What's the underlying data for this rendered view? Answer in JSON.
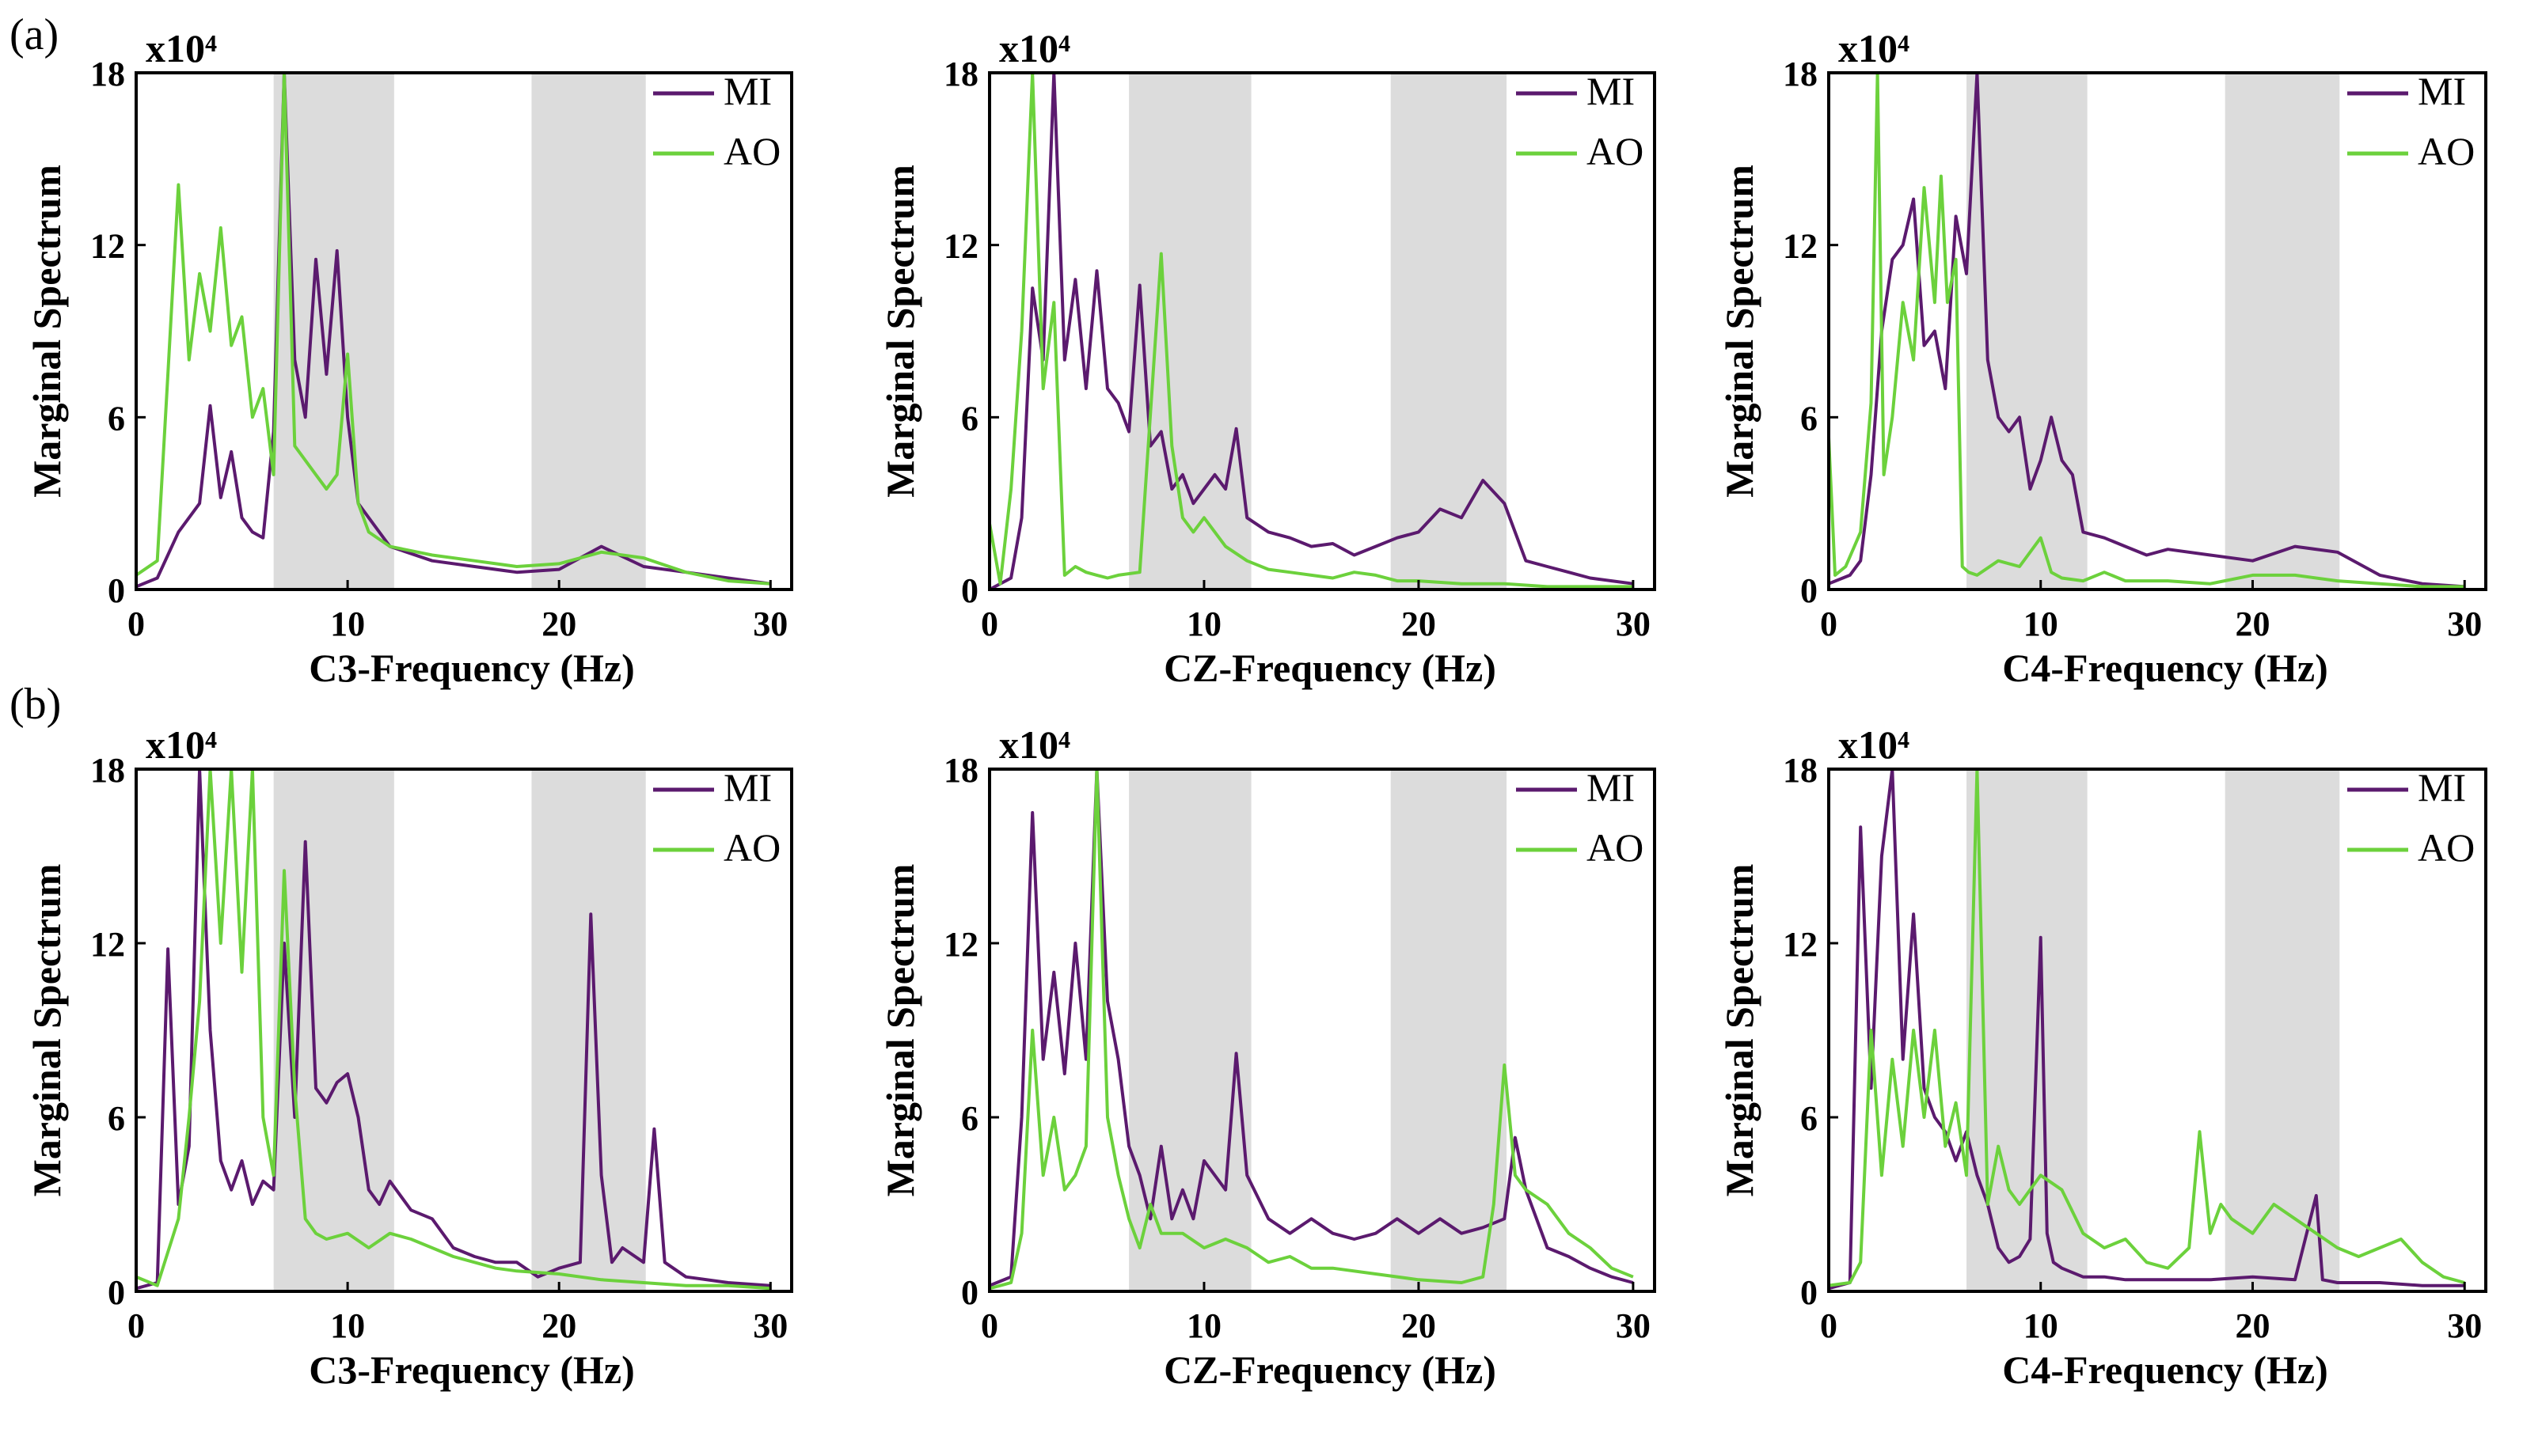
{
  "figure": {
    "panel_labels": [
      "(a)",
      "(b)"
    ],
    "colors": {
      "MI": "#5b1a6e",
      "AO": "#6cd13c",
      "shade": "#dcdcdc",
      "axis": "#000000"
    }
  },
  "chart_data": [
    {
      "type": "line",
      "row": "a",
      "title": "x10⁴",
      "xlabel": "C3-Frequency (Hz)",
      "ylabel": "Marginal Spectrum",
      "xlim": [
        0,
        31
      ],
      "ylim": [
        0,
        18
      ],
      "xticks": [
        0,
        10,
        20,
        30
      ],
      "yticks": [
        0,
        6,
        12,
        18
      ],
      "shaded_bands": [
        [
          6.5,
          12.2
        ],
        [
          18.7,
          24.1
        ]
      ],
      "legend": [
        "MI",
        "AO"
      ],
      "series": [
        {
          "name": "MI",
          "x": [
            0,
            1,
            2,
            3,
            3.5,
            4,
            4.5,
            5,
            5.5,
            6,
            6.5,
            7,
            7.5,
            8,
            8.5,
            9,
            9.5,
            10,
            10.5,
            11,
            12,
            14,
            16,
            18,
            20,
            22,
            24,
            26,
            28,
            30
          ],
          "y": [
            0.1,
            0.4,
            2.0,
            3.0,
            6.4,
            3.2,
            4.8,
            2.5,
            2.0,
            1.8,
            5.5,
            18.0,
            8.0,
            6.0,
            11.5,
            7.5,
            11.8,
            6.0,
            3.0,
            2.5,
            1.5,
            1.0,
            0.8,
            0.6,
            0.7,
            1.5,
            0.8,
            0.6,
            0.4,
            0.2
          ]
        },
        {
          "name": "AO",
          "x": [
            0,
            1,
            1.5,
            2,
            2.5,
            3,
            3.5,
            4,
            4.5,
            5,
            5.5,
            6,
            6.5,
            7,
            7.5,
            8,
            8.5,
            9,
            9.5,
            10,
            10.5,
            11,
            12,
            14,
            16,
            18,
            20,
            22,
            24,
            26,
            28,
            30
          ],
          "y": [
            0.5,
            1.0,
            7.5,
            14.1,
            8.0,
            11.0,
            9.0,
            12.6,
            8.5,
            9.5,
            6.0,
            7.0,
            4.0,
            18.0,
            5.0,
            4.5,
            4.0,
            3.5,
            4.0,
            8.2,
            3.0,
            2.0,
            1.5,
            1.2,
            1.0,
            0.8,
            0.9,
            1.3,
            1.1,
            0.6,
            0.3,
            0.2
          ]
        }
      ]
    },
    {
      "type": "line",
      "row": "a",
      "title": "x10⁴",
      "xlabel": "CZ-Frequency (Hz)",
      "ylabel": "Marginal Spectrum",
      "xlim": [
        0,
        31
      ],
      "ylim": [
        0,
        18
      ],
      "xticks": [
        0,
        10,
        20,
        30
      ],
      "yticks": [
        0,
        6,
        12,
        18
      ],
      "shaded_bands": [
        [
          6.5,
          12.2
        ],
        [
          18.7,
          24.1
        ]
      ],
      "legend": [
        "MI",
        "AO"
      ],
      "series": [
        {
          "name": "MI",
          "x": [
            0,
            1,
            1.5,
            2,
            2.5,
            3,
            3.5,
            4,
            4.5,
            5,
            5.5,
            6,
            6.5,
            7,
            7.5,
            8,
            8.5,
            9,
            9.5,
            10,
            10.5,
            11,
            11.5,
            12,
            13,
            14,
            15,
            16,
            17,
            18,
            19,
            20,
            21,
            22,
            23,
            24,
            25,
            26,
            27,
            28,
            29,
            30
          ],
          "y": [
            0,
            0.4,
            2.5,
            10.5,
            8.0,
            18.0,
            8.0,
            10.8,
            7.0,
            11.1,
            7.0,
            6.5,
            5.5,
            10.6,
            5.0,
            5.5,
            3.5,
            4.0,
            3.0,
            3.5,
            4.0,
            3.5,
            5.6,
            2.5,
            2.0,
            1.8,
            1.5,
            1.6,
            1.2,
            1.5,
            1.8,
            2.0,
            2.8,
            2.5,
            3.8,
            3.0,
            1.0,
            0.8,
            0.6,
            0.4,
            0.3,
            0.2
          ]
        },
        {
          "name": "AO",
          "x": [
            0,
            0.5,
            1,
            1.5,
            2,
            2.5,
            3,
            3.5,
            4,
            4.5,
            5,
            5.5,
            6,
            7,
            8,
            8.5,
            9,
            9.5,
            10,
            11,
            12,
            13,
            14,
            15,
            16,
            17,
            18,
            19,
            20,
            22,
            24,
            26,
            28,
            30
          ],
          "y": [
            2.3,
            0.2,
            3.5,
            9.0,
            18.0,
            7.0,
            10.0,
            0.5,
            0.8,
            0.6,
            0.5,
            0.4,
            0.5,
            0.6,
            11.7,
            5.0,
            2.5,
            2.0,
            2.5,
            1.5,
            1.0,
            0.7,
            0.6,
            0.5,
            0.4,
            0.6,
            0.5,
            0.3,
            0.3,
            0.2,
            0.2,
            0.1,
            0.1,
            0.1
          ]
        }
      ]
    },
    {
      "type": "line",
      "row": "a",
      "title": "x10⁴",
      "xlabel": "C4-Frequency (Hz)",
      "ylabel": "Marginal Spectrum",
      "xlim": [
        0,
        31
      ],
      "ylim": [
        0,
        18
      ],
      "xticks": [
        0,
        10,
        20,
        30
      ],
      "yticks": [
        0,
        6,
        12,
        18
      ],
      "shaded_bands": [
        [
          6.5,
          12.2
        ],
        [
          18.7,
          24.1
        ]
      ],
      "legend": [
        "MI",
        "AO"
      ],
      "series": [
        {
          "name": "MI",
          "x": [
            0,
            1,
            1.5,
            2,
            2.5,
            3,
            3.5,
            4,
            4.5,
            5,
            5.5,
            6,
            6.5,
            7,
            7.5,
            8,
            8.5,
            9,
            9.5,
            10,
            10.5,
            11,
            11.5,
            12,
            13,
            14,
            15,
            16,
            18,
            20,
            22,
            24,
            26,
            28,
            30
          ],
          "y": [
            0.2,
            0.5,
            1.0,
            4.0,
            9.0,
            11.5,
            12.0,
            13.6,
            8.5,
            9.0,
            7.0,
            13.0,
            11.0,
            18.0,
            8.0,
            6.0,
            5.5,
            6.0,
            3.5,
            4.5,
            6.0,
            4.5,
            4.0,
            2.0,
            1.8,
            1.5,
            1.2,
            1.4,
            1.2,
            1.0,
            1.5,
            1.3,
            0.5,
            0.2,
            0.1
          ]
        },
        {
          "name": "AO",
          "x": [
            0,
            0.3,
            0.8,
            1.5,
            2,
            2.3,
            2.6,
            3,
            3.5,
            4,
            4.5,
            5,
            5.3,
            5.6,
            6,
            6.3,
            6.6,
            7,
            8,
            9,
            10,
            10.5,
            11,
            12,
            13,
            14,
            16,
            18,
            20,
            22,
            24,
            26,
            28,
            30
          ],
          "y": [
            5.3,
            0.5,
            0.8,
            2.0,
            6.5,
            18.0,
            4.0,
            6.0,
            10.0,
            8.0,
            14.0,
            10.0,
            14.4,
            10.0,
            11.5,
            0.8,
            0.6,
            0.5,
            1.0,
            0.8,
            1.8,
            0.6,
            0.4,
            0.3,
            0.6,
            0.3,
            0.3,
            0.2,
            0.5,
            0.5,
            0.3,
            0.2,
            0.1,
            0.1
          ]
        }
      ]
    },
    {
      "type": "line",
      "row": "b",
      "title": "x10⁴",
      "xlabel": "C3-Frequency (Hz)",
      "ylabel": "Marginal Spectrum",
      "xlim": [
        0,
        31
      ],
      "ylim": [
        0,
        18
      ],
      "xticks": [
        0,
        10,
        20,
        30
      ],
      "yticks": [
        0,
        6,
        12,
        18
      ],
      "shaded_bands": [
        [
          6.5,
          12.2
        ],
        [
          18.7,
          24.1
        ]
      ],
      "legend": [
        "MI",
        "AO"
      ],
      "series": [
        {
          "name": "MI",
          "x": [
            0,
            1,
            1.5,
            2,
            2.5,
            3,
            3.5,
            4,
            4.5,
            5,
            5.5,
            6,
            6.5,
            7,
            7.5,
            8,
            8.5,
            9,
            9.5,
            10,
            10.5,
            11,
            11.5,
            12,
            13,
            14,
            15,
            16,
            17,
            18,
            19,
            20,
            21,
            21.5,
            22,
            22.5,
            23,
            24,
            24.5,
            25,
            26,
            28,
            30
          ],
          "y": [
            0.1,
            0.3,
            11.8,
            3.0,
            5.0,
            18.0,
            9.0,
            4.5,
            3.5,
            4.5,
            3.0,
            3.8,
            3.5,
            12.0,
            6.0,
            15.5,
            7.0,
            6.5,
            7.2,
            7.5,
            6.0,
            3.5,
            3.0,
            3.8,
            2.8,
            2.5,
            1.5,
            1.2,
            1.0,
            1.0,
            0.5,
            0.8,
            1.0,
            13.0,
            4.0,
            1.0,
            1.5,
            1.0,
            5.6,
            1.0,
            0.5,
            0.3,
            0.2
          ]
        },
        {
          "name": "AO",
          "x": [
            0,
            1,
            2,
            2.5,
            3,
            3.5,
            4,
            4.5,
            5,
            5.5,
            6,
            6.5,
            7,
            7.5,
            8,
            8.5,
            9,
            10,
            11,
            12,
            13,
            14,
            15,
            16,
            17,
            18,
            20,
            22,
            24,
            26,
            28,
            30
          ],
          "y": [
            0.5,
            0.2,
            2.5,
            6.0,
            10.0,
            18.0,
            12.0,
            18.0,
            11.0,
            18.0,
            6.0,
            4.0,
            14.5,
            7.0,
            2.5,
            2.0,
            1.8,
            2.0,
            1.5,
            2.0,
            1.8,
            1.5,
            1.2,
            1.0,
            0.8,
            0.7,
            0.6,
            0.4,
            0.3,
            0.2,
            0.2,
            0.1
          ]
        }
      ]
    },
    {
      "type": "line",
      "row": "b",
      "title": "x10⁴",
      "xlabel": "CZ-Frequency (Hz)",
      "ylabel": "Marginal Spectrum",
      "xlim": [
        0,
        31
      ],
      "ylim": [
        0,
        18
      ],
      "xticks": [
        0,
        10,
        20,
        30
      ],
      "yticks": [
        0,
        6,
        12,
        18
      ],
      "shaded_bands": [
        [
          6.5,
          12.2
        ],
        [
          18.7,
          24.1
        ]
      ],
      "legend": [
        "MI",
        "AO"
      ],
      "series": [
        {
          "name": "MI",
          "x": [
            0,
            1,
            1.5,
            2,
            2.5,
            3,
            3.5,
            4,
            4.5,
            5,
            5.5,
            6,
            6.5,
            7,
            7.5,
            8,
            8.5,
            9,
            9.5,
            10,
            11,
            11.5,
            12,
            13,
            14,
            15,
            16,
            17,
            18,
            19,
            20,
            21,
            22,
            23,
            24,
            24.5,
            25,
            26,
            27,
            28,
            29,
            30
          ],
          "y": [
            0.2,
            0.5,
            6.0,
            16.5,
            8.0,
            11.0,
            7.5,
            12.0,
            8.0,
            18.0,
            10.0,
            8.0,
            5.0,
            4.0,
            2.5,
            5.0,
            2.5,
            3.5,
            2.5,
            4.5,
            3.5,
            8.2,
            4.0,
            2.5,
            2.0,
            2.5,
            2.0,
            1.8,
            2.0,
            2.5,
            2.0,
            2.5,
            2.0,
            2.2,
            2.5,
            5.3,
            3.5,
            1.5,
            1.2,
            0.8,
            0.5,
            0.3
          ]
        },
        {
          "name": "AO",
          "x": [
            0,
            1,
            1.5,
            2,
            2.5,
            3,
            3.5,
            4,
            4.5,
            5,
            5.5,
            6,
            6.5,
            7,
            7.5,
            8,
            9,
            10,
            11,
            12,
            13,
            14,
            15,
            16,
            18,
            20,
            22,
            23,
            23.5,
            24,
            24.5,
            25,
            26,
            27,
            28,
            29,
            30
          ],
          "y": [
            0.1,
            0.3,
            2.0,
            9.0,
            4.0,
            6.0,
            3.5,
            4.0,
            5.0,
            18.0,
            6.0,
            4.0,
            2.5,
            1.5,
            3.0,
            2.0,
            2.0,
            1.5,
            1.8,
            1.5,
            1.0,
            1.2,
            0.8,
            0.8,
            0.6,
            0.4,
            0.3,
            0.5,
            3.0,
            7.8,
            4.0,
            3.5,
            3.0,
            2.0,
            1.5,
            0.8,
            0.5
          ]
        }
      ]
    },
    {
      "type": "line",
      "row": "b",
      "title": "x10⁴",
      "xlabel": "C4-Frequency (Hz)",
      "ylabel": "Marginal Spectrum",
      "xlim": [
        0,
        31
      ],
      "ylim": [
        0,
        18
      ],
      "xticks": [
        0,
        10,
        20,
        30
      ],
      "yticks": [
        0,
        6,
        12,
        18
      ],
      "shaded_bands": [
        [
          6.5,
          12.2
        ],
        [
          18.7,
          24.1
        ]
      ],
      "legend": [
        "MI",
        "AO"
      ],
      "series": [
        {
          "name": "MI",
          "x": [
            0,
            1,
            1.5,
            2,
            2.5,
            3,
            3.5,
            4,
            4.5,
            5,
            5.5,
            6,
            6.5,
            7,
            7.5,
            8,
            8.5,
            9,
            9.5,
            10,
            10.3,
            10.6,
            11,
            12,
            13,
            14,
            16,
            18,
            20,
            22,
            23,
            23.3,
            24,
            26,
            28,
            30
          ],
          "y": [
            0.1,
            0.3,
            16.0,
            7.0,
            15.0,
            18.0,
            8.0,
            13.0,
            7.0,
            6.0,
            5.5,
            4.5,
            5.5,
            4.0,
            3.0,
            1.5,
            1.0,
            1.2,
            1.8,
            12.2,
            2.0,
            1.0,
            0.8,
            0.5,
            0.5,
            0.4,
            0.4,
            0.4,
            0.5,
            0.4,
            3.3,
            0.4,
            0.3,
            0.3,
            0.2,
            0.2
          ]
        },
        {
          "name": "AO",
          "x": [
            0,
            1,
            1.5,
            2,
            2.5,
            3,
            3.5,
            4,
            4.5,
            5,
            5.5,
            6,
            6.5,
            7,
            7.5,
            8,
            8.5,
            9,
            10,
            11,
            12,
            13,
            14,
            15,
            16,
            17,
            17.5,
            18,
            18.5,
            19,
            20,
            21,
            22,
            23,
            24,
            25,
            26,
            27,
            28,
            29,
            30
          ],
          "y": [
            0.2,
            0.3,
            1.0,
            9.0,
            4.0,
            8.0,
            5.0,
            9.0,
            6.0,
            9.0,
            5.0,
            6.5,
            4.0,
            18.0,
            3.0,
            5.0,
            3.5,
            3.0,
            4.0,
            3.5,
            2.0,
            1.5,
            1.8,
            1.0,
            0.8,
            1.5,
            5.5,
            2.0,
            3.0,
            2.5,
            2.0,
            3.0,
            2.5,
            2.0,
            1.5,
            1.2,
            1.5,
            1.8,
            1.0,
            0.5,
            0.3
          ]
        }
      ]
    }
  ]
}
